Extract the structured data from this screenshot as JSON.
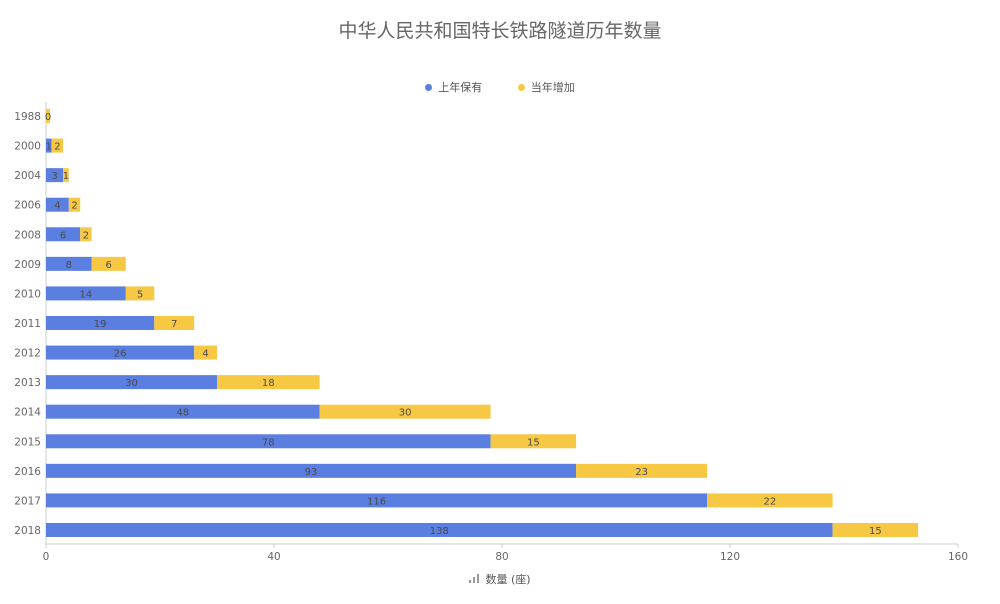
{
  "chart_data": {
    "type": "bar",
    "orientation": "horizontal",
    "stacked": true,
    "title": "中华人民共和国特长铁路隧道历年数量",
    "xlabel": "数量 (座)",
    "ylabel": "",
    "xlim": [
      0,
      160
    ],
    "xticks": [
      0,
      40,
      80,
      120,
      160
    ],
    "categories": [
      "1988",
      "2000",
      "2004",
      "2006",
      "2008",
      "2009",
      "2010",
      "2011",
      "2012",
      "2013",
      "2014",
      "2015",
      "2016",
      "2017",
      "2018"
    ],
    "series": [
      {
        "name": "上年保有",
        "color": "#5b7fe0",
        "values": [
          0,
          1,
          3,
          4,
          6,
          8,
          14,
          19,
          26,
          30,
          48,
          78,
          93,
          116,
          138
        ]
      },
      {
        "name": "当年增加",
        "color": "#f6c844",
        "values": [
          0,
          2,
          1,
          2,
          2,
          6,
          5,
          7,
          4,
          18,
          30,
          15,
          23,
          22,
          15
        ]
      }
    ],
    "legend_position": "top-center",
    "grid": false
  }
}
